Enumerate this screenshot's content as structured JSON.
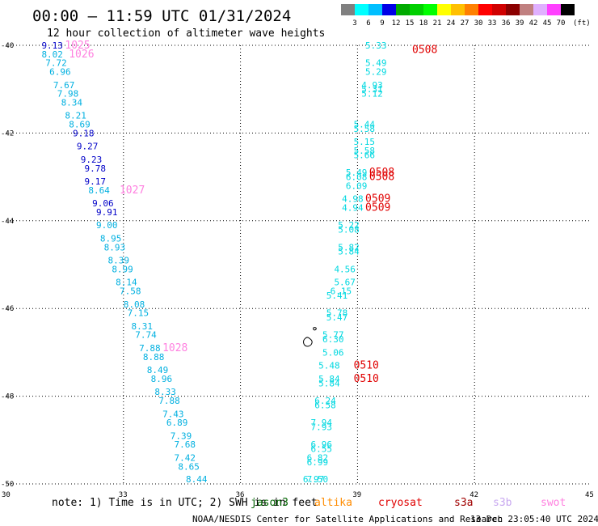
{
  "title": "00:00 – 11:59 UTC 01/31/2024",
  "subtitle": "12 hour collection of altimeter wave heights",
  "colorbar": {
    "colors": [
      "#808080",
      "#00ffff",
      "#00bfff",
      "#0000e6",
      "#00aa00",
      "#00d000",
      "#00ff00",
      "#ffff00",
      "#ffc000",
      "#ff8000",
      "#ff0000",
      "#d00000",
      "#8b0000",
      "#c08080",
      "#e0b0ff",
      "#ff40ff",
      "#000000"
    ],
    "labels": [
      "3",
      "6",
      "9",
      "12",
      "15",
      "18",
      "21",
      "24",
      "27",
      "30",
      "33",
      "36",
      "39",
      "42",
      "45",
      "70"
    ],
    "unit": "(ft)"
  },
  "note": "note: 1) Time is in UTC; 2) SWH is in feet",
  "satellites": [
    {
      "name": "jason3",
      "color": "#006400"
    },
    {
      "name": "altika",
      "color": "#ff8c00"
    },
    {
      "name": "cryosat",
      "color": "#e00000"
    },
    {
      "name": "s3a",
      "color": "#a00000"
    },
    {
      "name": "s3b",
      "color": "#c8a8f0"
    },
    {
      "name": "swot",
      "color": "#ff80e0"
    }
  ],
  "footer_left": "NOAA/NESDIS Center for Satellite Applications and Research",
  "footer_right": "13 Dec 23:05:40 UTC 2024",
  "chart_data": {
    "type": "scatter",
    "xlim": [
      30,
      45
    ],
    "ylim": [
      -50,
      -40
    ],
    "xticks": [
      30,
      33,
      36,
      39,
      42,
      45
    ],
    "yticks": [
      -40,
      -42,
      -44,
      -46,
      -48,
      -50
    ],
    "grid": true,
    "tracks": [
      {
        "x": 30.9,
        "y": -40.0,
        "label": "9.13",
        "color": "#0000c8"
      },
      {
        "x": 31.5,
        "y": -40.0,
        "label": "1025",
        "color": "#ff80e0"
      },
      {
        "x": 30.9,
        "y": -40.2,
        "label": "8.02",
        "color": "#00b0e0"
      },
      {
        "x": 31.6,
        "y": -40.2,
        "label": "1026",
        "color": "#ff80e0"
      },
      {
        "x": 31.0,
        "y": -40.4,
        "label": "7.72",
        "color": "#00b0e0"
      },
      {
        "x": 31.1,
        "y": -40.6,
        "label": "6.96",
        "color": "#00b0e0"
      },
      {
        "x": 31.2,
        "y": -40.9,
        "label": "7.67",
        "color": "#00b0e0"
      },
      {
        "x": 31.3,
        "y": -41.1,
        "label": "7.98",
        "color": "#00b0e0"
      },
      {
        "x": 31.4,
        "y": -41.3,
        "label": "8.34",
        "color": "#00b0e0"
      },
      {
        "x": 31.5,
        "y": -41.6,
        "label": "8.21",
        "color": "#00b0e0"
      },
      {
        "x": 31.6,
        "y": -41.8,
        "label": "8.69",
        "color": "#00b0e0"
      },
      {
        "x": 31.7,
        "y": -42.0,
        "label": "9.18",
        "color": "#0000c8"
      },
      {
        "x": 31.8,
        "y": -42.3,
        "label": "9.27",
        "color": "#0000c8"
      },
      {
        "x": 31.9,
        "y": -42.6,
        "label": "9.23",
        "color": "#0000c8"
      },
      {
        "x": 32.0,
        "y": -42.8,
        "label": "9.78",
        "color": "#0000c8"
      },
      {
        "x": 32.0,
        "y": -43.1,
        "label": "9.17",
        "color": "#0000c8"
      },
      {
        "x": 32.1,
        "y": -43.3,
        "label": "8.64",
        "color": "#00b0e0"
      },
      {
        "x": 32.9,
        "y": -43.3,
        "label": "1027",
        "color": "#ff80e0"
      },
      {
        "x": 32.2,
        "y": -43.6,
        "label": "9.06",
        "color": "#0000c8"
      },
      {
        "x": 32.3,
        "y": -43.8,
        "label": "9.91",
        "color": "#0000c8"
      },
      {
        "x": 32.3,
        "y": -44.1,
        "label": "9.00",
        "color": "#00b0e0"
      },
      {
        "x": 32.4,
        "y": -44.4,
        "label": "8.95",
        "color": "#00b0e0"
      },
      {
        "x": 32.5,
        "y": -44.6,
        "label": "8.93",
        "color": "#00b0e0"
      },
      {
        "x": 32.6,
        "y": -44.9,
        "label": "8.39",
        "color": "#00b0e0"
      },
      {
        "x": 32.7,
        "y": -45.1,
        "label": "8.99",
        "color": "#00b0e0"
      },
      {
        "x": 32.8,
        "y": -45.4,
        "label": "8.14",
        "color": "#00b0e0"
      },
      {
        "x": 32.9,
        "y": -45.6,
        "label": "7.58",
        "color": "#00b0e0"
      },
      {
        "x": 33.0,
        "y": -45.9,
        "label": "8.08",
        "color": "#00b0e0"
      },
      {
        "x": 33.1,
        "y": -46.1,
        "label": "7.15",
        "color": "#00b0e0"
      },
      {
        "x": 33.2,
        "y": -46.4,
        "label": "8.31",
        "color": "#00b0e0"
      },
      {
        "x": 33.3,
        "y": -46.6,
        "label": "7.74",
        "color": "#00b0e0"
      },
      {
        "x": 33.4,
        "y": -46.9,
        "label": "7.88",
        "color": "#00b0e0"
      },
      {
        "x": 34.0,
        "y": -46.9,
        "label": "1028",
        "color": "#ff80e0"
      },
      {
        "x": 33.5,
        "y": -47.1,
        "label": "8.88",
        "color": "#00b0e0"
      },
      {
        "x": 33.6,
        "y": -47.4,
        "label": "8.49",
        "color": "#00b0e0"
      },
      {
        "x": 33.7,
        "y": -47.6,
        "label": "8.96",
        "color": "#00b0e0"
      },
      {
        "x": 33.8,
        "y": -47.9,
        "label": "8.33",
        "color": "#00b0e0"
      },
      {
        "x": 33.9,
        "y": -48.1,
        "label": "7.88",
        "color": "#00b0e0"
      },
      {
        "x": 34.0,
        "y": -48.4,
        "label": "7.43",
        "color": "#00b0e0"
      },
      {
        "x": 34.1,
        "y": -48.6,
        "label": "6.89",
        "color": "#00b0e0"
      },
      {
        "x": 34.2,
        "y": -48.9,
        "label": "7.39",
        "color": "#00b0e0"
      },
      {
        "x": 34.3,
        "y": -49.1,
        "label": "7.68",
        "color": "#00b0e0"
      },
      {
        "x": 34.3,
        "y": -49.4,
        "label": "7.42",
        "color": "#00b0e0"
      },
      {
        "x": 34.4,
        "y": -49.6,
        "label": "8.65",
        "color": "#00b0e0"
      },
      {
        "x": 34.6,
        "y": -49.9,
        "label": "8.44",
        "color": "#00b0e0"
      },
      {
        "x": 39.2,
        "y": -40.0,
        "label": "5.33",
        "color": "#00d8e0"
      },
      {
        "x": 40.4,
        "y": -40.1,
        "label": "0508",
        "color": "#e00000"
      },
      {
        "x": 39.2,
        "y": -40.4,
        "label": "5.49",
        "color": "#00d8e0"
      },
      {
        "x": 39.2,
        "y": -40.6,
        "label": "5.29",
        "color": "#00d8e0"
      },
      {
        "x": 39.1,
        "y": -40.9,
        "label": "4.93",
        "color": "#00d8e0"
      },
      {
        "x": 39.1,
        "y": -41.0,
        "label": "5.31",
        "color": "#00d8e0"
      },
      {
        "x": 39.1,
        "y": -41.1,
        "label": "5.12",
        "color": "#00d8e0"
      },
      {
        "x": 38.9,
        "y": -41.8,
        "label": "5.44",
        "color": "#00d8e0"
      },
      {
        "x": 38.9,
        "y": -41.9,
        "label": "5.58",
        "color": "#00d8e0"
      },
      {
        "x": 38.9,
        "y": -42.2,
        "label": "5.15",
        "color": "#00d8e0"
      },
      {
        "x": 38.9,
        "y": -42.4,
        "label": "5.58",
        "color": "#00d8e0"
      },
      {
        "x": 38.9,
        "y": -42.5,
        "label": "5.66",
        "color": "#00d8e0"
      },
      {
        "x": 38.7,
        "y": -42.9,
        "label": "5.49",
        "color": "#00d8e0"
      },
      {
        "x": 38.7,
        "y": -43.0,
        "label": "6.08",
        "color": "#00d8e0"
      },
      {
        "x": 38.7,
        "y": -43.2,
        "label": "6.09",
        "color": "#00d8e0"
      },
      {
        "x": 39.3,
        "y": -42.9,
        "label": "0508",
        "color": "#e00000"
      },
      {
        "x": 39.3,
        "y": -43.0,
        "label": "0508",
        "color": "#e00000"
      },
      {
        "x": 38.6,
        "y": -43.5,
        "label": "4.98",
        "color": "#00d8e0"
      },
      {
        "x": 38.6,
        "y": -43.7,
        "label": "4.94",
        "color": "#00d8e0"
      },
      {
        "x": 39.2,
        "y": -43.5,
        "label": "0509",
        "color": "#e00000"
      },
      {
        "x": 39.2,
        "y": -43.7,
        "label": "0509",
        "color": "#e00000"
      },
      {
        "x": 38.5,
        "y": -44.1,
        "label": "5.22",
        "color": "#00d8e0"
      },
      {
        "x": 38.5,
        "y": -44.2,
        "label": "5.08",
        "color": "#00d8e0"
      },
      {
        "x": 38.5,
        "y": -44.6,
        "label": "5.82",
        "color": "#00d8e0"
      },
      {
        "x": 38.5,
        "y": -44.7,
        "label": "5.84",
        "color": "#00d8e0"
      },
      {
        "x": 38.4,
        "y": -45.1,
        "label": "4.56",
        "color": "#00d8e0"
      },
      {
        "x": 38.4,
        "y": -45.4,
        "label": "5.67",
        "color": "#00d8e0"
      },
      {
        "x": 38.3,
        "y": -45.6,
        "label": "6.15",
        "color": "#00d8e0"
      },
      {
        "x": 38.2,
        "y": -45.7,
        "label": "5.41",
        "color": "#00d8e0"
      },
      {
        "x": 38.2,
        "y": -46.1,
        "label": "5.78",
        "color": "#00d8e0"
      },
      {
        "x": 38.2,
        "y": -46.2,
        "label": "5.47",
        "color": "#00d8e0"
      },
      {
        "x": 38.1,
        "y": -46.6,
        "label": "5.77",
        "color": "#00d8e0"
      },
      {
        "x": 38.1,
        "y": -46.7,
        "label": "6.30",
        "color": "#00d8e0"
      },
      {
        "x": 38.1,
        "y": -47.0,
        "label": "5.06",
        "color": "#00d8e0"
      },
      {
        "x": 38.0,
        "y": -47.3,
        "label": "5.48",
        "color": "#00d8e0"
      },
      {
        "x": 38.9,
        "y": -47.3,
        "label": "0510",
        "color": "#e00000"
      },
      {
        "x": 38.0,
        "y": -47.6,
        "label": "5.84",
        "color": "#00d8e0"
      },
      {
        "x": 38.0,
        "y": -47.7,
        "label": "5.84",
        "color": "#00d8e0"
      },
      {
        "x": 38.9,
        "y": -47.6,
        "label": "0510",
        "color": "#e00000"
      },
      {
        "x": 37.9,
        "y": -48.1,
        "label": "6.24",
        "color": "#00d8e0"
      },
      {
        "x": 37.9,
        "y": -48.2,
        "label": "6.58",
        "color": "#00d8e0"
      },
      {
        "x": 37.8,
        "y": -48.6,
        "label": "7.94",
        "color": "#00d8e0"
      },
      {
        "x": 37.8,
        "y": -48.7,
        "label": "7.93",
        "color": "#00d8e0"
      },
      {
        "x": 37.8,
        "y": -49.1,
        "label": "6.96",
        "color": "#00d8e0"
      },
      {
        "x": 37.8,
        "y": -49.2,
        "label": "6.55",
        "color": "#00d8e0"
      },
      {
        "x": 37.7,
        "y": -49.4,
        "label": "6.82",
        "color": "#00d8e0"
      },
      {
        "x": 37.7,
        "y": -49.5,
        "label": "6.99",
        "color": "#00d8e0"
      },
      {
        "x": 37.7,
        "y": -49.9,
        "label": "7.50",
        "color": "#00d8e0"
      },
      {
        "x": 37.6,
        "y": -50.3,
        "label": "6.97",
        "color": "#00d8e0"
      }
    ]
  }
}
